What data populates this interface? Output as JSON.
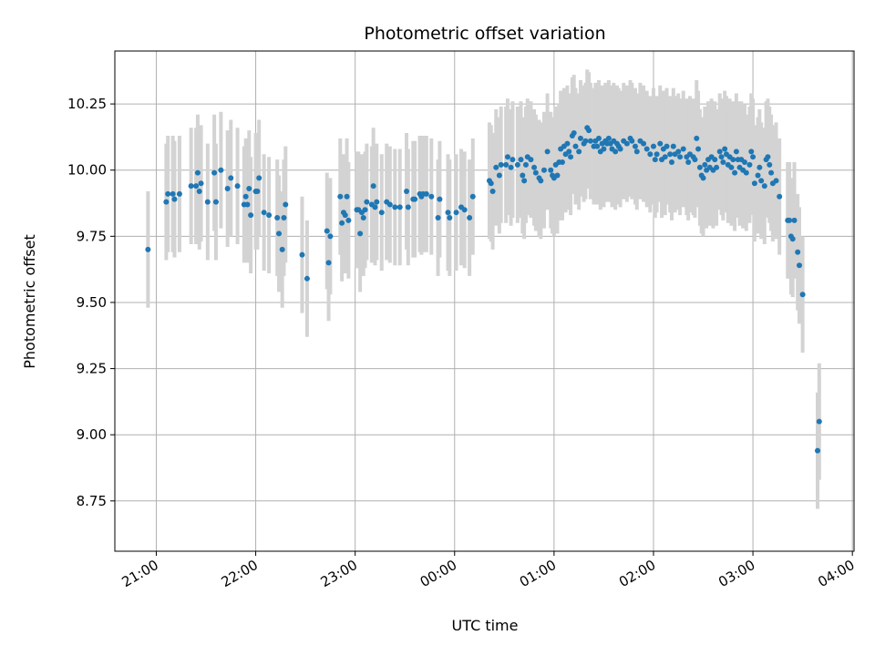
{
  "chart_data": {
    "type": "scatter",
    "title": "Photometric offset variation",
    "xlabel": "UTC time",
    "ylabel": "Photometric offset",
    "x_axis": "time",
    "xlim": [
      "20:35",
      "24:00+04:01"
    ],
    "x_ticks": [
      "21:00",
      "22:00",
      "23:00",
      "00:00",
      "01:00",
      "02:00",
      "03:00",
      "04:00"
    ],
    "ylim": [
      8.56,
      10.45
    ],
    "y_ticks": [
      "8.75",
      "9.00",
      "9.25",
      "9.50",
      "9.75",
      "10.00",
      "10.25"
    ],
    "grid": true,
    "colors": {
      "point": "#1f77b4",
      "errorbar": "#d3d3d3",
      "grid": "#b0b0b0"
    },
    "errorbar_halfwidth": 0.22,
    "series": [
      {
        "points": [
          [
            "20:55",
            9.7
          ],
          [
            "21:06",
            9.88
          ],
          [
            "21:07",
            9.91
          ],
          [
            "21:10",
            9.91
          ],
          [
            "21:11",
            9.89
          ],
          [
            "21:14",
            9.91
          ],
          [
            "21:21",
            9.94
          ],
          [
            "21:24",
            9.94
          ],
          [
            "21:25",
            9.99
          ],
          [
            "21:26",
            9.92
          ],
          [
            "21:27",
            9.95
          ],
          [
            "21:31",
            9.88
          ],
          [
            "21:35",
            9.99
          ],
          [
            "21:36",
            9.88
          ],
          [
            "21:39",
            10.0
          ],
          [
            "21:43",
            9.93
          ],
          [
            "21:45",
            9.97
          ],
          [
            "21:49",
            9.94
          ],
          [
            "21:53",
            9.87
          ],
          [
            "21:54",
            9.9
          ],
          [
            "21:55",
            9.87
          ],
          [
            "21:56",
            9.93
          ],
          [
            "21:57",
            9.83
          ],
          [
            "22:00",
            9.92
          ],
          [
            "22:01",
            9.92
          ],
          [
            "22:02",
            9.97
          ],
          [
            "22:05",
            9.84
          ],
          [
            "22:08",
            9.83
          ],
          [
            "22:13",
            9.82
          ],
          [
            "22:14",
            9.76
          ],
          [
            "22:16",
            9.7
          ],
          [
            "22:17",
            9.82
          ],
          [
            "22:18",
            9.87
          ],
          [
            "22:28",
            9.68
          ],
          [
            "22:31",
            9.59
          ],
          [
            "22:43",
            9.77
          ],
          [
            "22:44",
            9.65
          ],
          [
            "22:45",
            9.75
          ],
          [
            "22:51",
            9.9
          ],
          [
            "22:52",
            9.8
          ],
          [
            "22:53",
            9.84
          ],
          [
            "22:54",
            9.83
          ],
          [
            "22:55",
            9.9
          ],
          [
            "22:56",
            9.81
          ],
          [
            "23:01",
            9.85
          ],
          [
            "23:02",
            9.85
          ],
          [
            "23:03",
            9.76
          ],
          [
            "23:04",
            9.84
          ],
          [
            "23:05",
            9.82
          ],
          [
            "23:06",
            9.85
          ],
          [
            "23:07",
            9.88
          ],
          [
            "23:10",
            9.87
          ],
          [
            "23:11",
            9.94
          ],
          [
            "23:12",
            9.86
          ],
          [
            "23:13",
            9.88
          ],
          [
            "23:16",
            9.84
          ],
          [
            "23:19",
            9.88
          ],
          [
            "23:21",
            9.87
          ],
          [
            "23:24",
            9.86
          ],
          [
            "23:27",
            9.86
          ],
          [
            "23:31",
            9.92
          ],
          [
            "23:32",
            9.86
          ],
          [
            "23:35",
            9.89
          ],
          [
            "23:36",
            9.89
          ],
          [
            "23:39",
            9.91
          ],
          [
            "23:40",
            9.9
          ],
          [
            "23:41",
            9.91
          ],
          [
            "23:43",
            9.91
          ],
          [
            "23:46",
            9.9
          ],
          [
            "23:50",
            9.82
          ],
          [
            "23:51",
            9.89
          ],
          [
            "23:56",
            9.84
          ],
          [
            "23:57",
            9.82
          ],
          [
            "24:00+00:01",
            9.84
          ],
          [
            "24:00+00:04",
            9.86
          ],
          [
            "24:00+00:06",
            9.85
          ],
          [
            "24:00+00:09",
            9.82
          ],
          [
            "24:00+00:11",
            9.9
          ],
          [
            "24:00+00:21",
            9.96
          ],
          [
            "24:00+00:22",
            9.95
          ],
          [
            "24:00+00:23",
            9.92
          ],
          [
            "24:00+00:25",
            10.01
          ],
          [
            "24:00+00:27",
            9.98
          ],
          [
            "24:00+00:28",
            10.02
          ],
          [
            "24:00+00:31",
            10.02
          ],
          [
            "24:00+00:32",
            10.05
          ],
          [
            "24:00+00:34",
            10.01
          ],
          [
            "24:00+00:35",
            10.04
          ],
          [
            "24:00+00:38",
            10.02
          ],
          [
            "24:00+00:40",
            10.04
          ],
          [
            "24:00+00:41",
            9.98
          ],
          [
            "24:00+00:42",
            9.96
          ],
          [
            "24:00+00:43",
            10.02
          ],
          [
            "24:00+00:44",
            10.05
          ],
          [
            "24:00+00:46",
            10.04
          ],
          [
            "24:00+00:48",
            10.01
          ],
          [
            "24:00+00:49",
            9.99
          ],
          [
            "24:00+00:51",
            9.97
          ],
          [
            "24:00+00:52",
            9.96
          ],
          [
            "24:00+00:54",
            10.0
          ],
          [
            "24:00+00:56",
            10.07
          ],
          [
            "24:00+00:58",
            10.0
          ],
          [
            "24:00+00:59",
            9.98
          ],
          [
            "24:00+01:00",
            9.97
          ],
          [
            "24:00+01:01",
            10.02
          ],
          [
            "24:00+01:02",
            9.98
          ],
          [
            "24:00+01:03",
            10.03
          ],
          [
            "24:00+01:04",
            10.08
          ],
          [
            "24:00+01:05",
            10.03
          ],
          [
            "24:00+01:06",
            10.09
          ],
          [
            "24:00+01:07",
            10.06
          ],
          [
            "24:00+01:08",
            10.1
          ],
          [
            "24:00+01:09",
            10.07
          ],
          [
            "24:00+01:10",
            10.05
          ],
          [
            "24:00+01:11",
            10.13
          ],
          [
            "24:00+01:12",
            10.14
          ],
          [
            "24:00+01:13",
            10.09
          ],
          [
            "24:00+01:15",
            10.07
          ],
          [
            "24:00+01:16",
            10.12
          ],
          [
            "24:00+01:18",
            10.1
          ],
          [
            "24:00+01:19",
            10.11
          ],
          [
            "24:00+01:20",
            10.16
          ],
          [
            "24:00+01:21",
            10.15
          ],
          [
            "24:00+01:22",
            10.11
          ],
          [
            "24:00+01:24",
            10.09
          ],
          [
            "24:00+01:25",
            10.11
          ],
          [
            "24:00+01:26",
            10.09
          ],
          [
            "24:00+01:27",
            10.12
          ],
          [
            "24:00+01:28",
            10.07
          ],
          [
            "24:00+01:29",
            10.1
          ],
          [
            "24:00+01:30",
            10.08
          ],
          [
            "24:00+01:31",
            10.11
          ],
          [
            "24:00+01:32",
            10.1
          ],
          [
            "24:00+01:33",
            10.12
          ],
          [
            "24:00+01:34",
            10.1
          ],
          [
            "24:00+01:35",
            10.08
          ],
          [
            "24:00+01:36",
            10.11
          ],
          [
            "24:00+01:37",
            10.07
          ],
          [
            "24:00+01:38",
            10.1
          ],
          [
            "24:00+01:39",
            10.09
          ],
          [
            "24:00+01:40",
            10.08
          ],
          [
            "24:00+01:42",
            10.11
          ],
          [
            "24:00+01:44",
            10.1
          ],
          [
            "24:00+01:46",
            10.12
          ],
          [
            "24:00+01:47",
            10.11
          ],
          [
            "24:00+01:49",
            10.09
          ],
          [
            "24:00+01:50",
            10.07
          ],
          [
            "24:00+01:52",
            10.11
          ],
          [
            "24:00+01:54",
            10.1
          ],
          [
            "24:00+01:56",
            10.08
          ],
          [
            "24:00+01:58",
            10.06
          ],
          [
            "24:00+02:00",
            10.09
          ],
          [
            "24:00+02:01",
            10.04
          ],
          [
            "24:00+02:02",
            10.06
          ],
          [
            "24:00+02:04",
            10.1
          ],
          [
            "24:00+02:05",
            10.04
          ],
          [
            "24:00+02:06",
            10.08
          ],
          [
            "24:00+02:07",
            10.05
          ],
          [
            "24:00+02:08",
            10.09
          ],
          [
            "24:00+02:10",
            10.06
          ],
          [
            "24:00+02:11",
            10.03
          ],
          [
            "24:00+02:12",
            10.09
          ],
          [
            "24:00+02:13",
            10.06
          ],
          [
            "24:00+02:15",
            10.07
          ],
          [
            "24:00+02:16",
            10.05
          ],
          [
            "24:00+02:18",
            10.08
          ],
          [
            "24:00+02:20",
            10.05
          ],
          [
            "24:00+02:21",
            10.03
          ],
          [
            "24:00+02:22",
            10.06
          ],
          [
            "24:00+02:24",
            10.05
          ],
          [
            "24:00+02:25",
            10.04
          ],
          [
            "24:00+02:26",
            10.12
          ],
          [
            "24:00+02:27",
            10.08
          ],
          [
            "24:00+02:28",
            10.01
          ],
          [
            "24:00+02:29",
            9.98
          ],
          [
            "24:00+02:30",
            9.97
          ],
          [
            "24:00+02:31",
            10.02
          ],
          [
            "24:00+02:32",
            10.0
          ],
          [
            "24:00+02:33",
            10.04
          ],
          [
            "24:00+02:34",
            10.01
          ],
          [
            "24:00+02:35",
            10.05
          ],
          [
            "24:00+02:36",
            10.0
          ],
          [
            "24:00+02:37",
            10.04
          ],
          [
            "24:00+02:38",
            10.01
          ],
          [
            "24:00+02:40",
            10.07
          ],
          [
            "24:00+02:41",
            10.05
          ],
          [
            "24:00+02:42",
            10.03
          ],
          [
            "24:00+02:43",
            10.08
          ],
          [
            "24:00+02:44",
            10.06
          ],
          [
            "24:00+02:45",
            10.02
          ],
          [
            "24:00+02:46",
            10.05
          ],
          [
            "24:00+02:47",
            10.01
          ],
          [
            "24:00+02:48",
            10.04
          ],
          [
            "24:00+02:49",
            9.99
          ],
          [
            "24:00+02:50",
            10.07
          ],
          [
            "24:00+02:51",
            10.04
          ],
          [
            "24:00+02:52",
            10.01
          ],
          [
            "24:00+02:53",
            10.04
          ],
          [
            "24:00+02:54",
            10.0
          ],
          [
            "24:00+02:55",
            10.03
          ],
          [
            "24:00+02:56",
            9.99
          ],
          [
            "24:00+02:58",
            10.02
          ],
          [
            "24:00+02:59",
            10.07
          ],
          [
            "24:00+03:00",
            10.05
          ],
          [
            "24:00+03:01",
            9.95
          ],
          [
            "24:00+03:03",
            9.98
          ],
          [
            "24:00+03:04",
            10.01
          ],
          [
            "24:00+03:05",
            9.96
          ],
          [
            "24:00+03:07",
            9.94
          ],
          [
            "24:00+03:08",
            10.04
          ],
          [
            "24:00+03:09",
            10.05
          ],
          [
            "24:00+03:10",
            10.02
          ],
          [
            "24:00+03:11",
            9.99
          ],
          [
            "24:00+03:12",
            9.95
          ],
          [
            "24:00+03:14",
            9.96
          ],
          [
            "24:00+03:16",
            9.9
          ],
          [
            "24:00+03:21",
            9.81
          ],
          [
            "24:00+03:22",
            9.81
          ],
          [
            "24:00+03:23",
            9.75
          ],
          [
            "24:00+03:24",
            9.74
          ],
          [
            "24:00+03:25",
            9.81
          ],
          [
            "24:00+03:27",
            9.69
          ],
          [
            "24:00+03:28",
            9.64
          ],
          [
            "24:00+03:30",
            9.53
          ],
          [
            "24:00+03:39",
            8.94
          ],
          [
            "24:00+03:40",
            9.05
          ]
        ]
      }
    ]
  }
}
